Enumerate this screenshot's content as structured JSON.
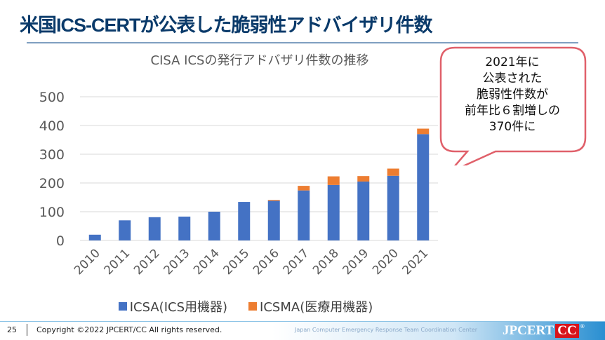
{
  "slide": {
    "title": "米国ICS-CERTが公表した脆弱性アドバイザリ件数",
    "callout": {
      "lines": [
        "2021年に",
        "公表された",
        "脆弱性件数が",
        "前年比６割増しの",
        "370件に"
      ],
      "border_color": "#e0606a"
    },
    "footer": {
      "page_number": "25",
      "copyright": "Copyright ©2022  JPCERT/CC All rights reserved.",
      "organization": "Japan Computer Emergency Response Team  Coordination Center",
      "logo_text": "JPCERT",
      "logo_cc": "CC",
      "logo_reg": "®"
    }
  },
  "chart_data": {
    "type": "bar",
    "stacked": true,
    "title": "CISA ICSの発行アドバザリ件数の推移",
    "xlabel": "",
    "ylabel": "",
    "ylim": [
      0,
      500
    ],
    "yticks": [
      "0",
      "100",
      "200",
      "300",
      "400",
      "500"
    ],
    "grid": true,
    "legend_position": "bottom",
    "categories": [
      "2010",
      "2011",
      "2012",
      "2013",
      "2014",
      "2015",
      "2016",
      "2017",
      "2018",
      "2019",
      "2020",
      "2021"
    ],
    "series": [
      {
        "name": "ICSA(ICS用機器)",
        "color": "#4472c4",
        "values": [
          20,
          70,
          81,
          83,
          100,
          134,
          138,
          174,
          193,
          205,
          225,
          370
        ]
      },
      {
        "name": "ICSMA(医療用機器)",
        "color": "#ed7d31",
        "values": [
          0,
          0,
          0,
          0,
          0,
          0,
          3,
          16,
          30,
          19,
          25,
          19
        ]
      }
    ]
  }
}
